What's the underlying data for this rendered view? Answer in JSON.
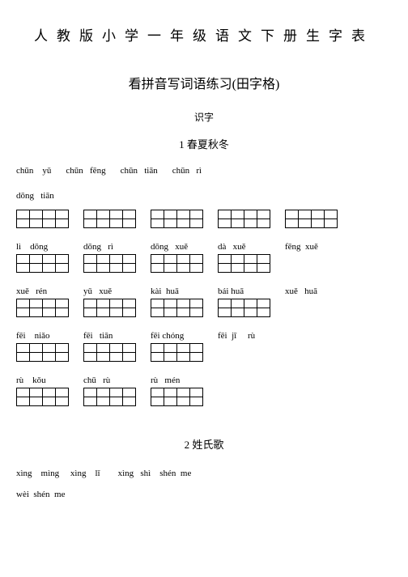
{
  "mainTitle": "人教版小学一年级语文下册生字表",
  "subtitle": "看拼音写词语练习(田字格)",
  "sectionLabel": "识字",
  "lesson1": {
    "title": "1 春夏秋冬",
    "r1": [
      "chūn    yǔ",
      "chūn   fēng",
      "chūn   tiān",
      "chūn   rì"
    ],
    "r1b": "dōng   tiān",
    "r2": [
      "lì    dōng",
      "dōng   rì",
      "dōng   xuě",
      "dà   xuě",
      "fēng  xuě"
    ],
    "r3": [
      "xuě   rén",
      "yǔ   xuě",
      "kài  huā",
      "bái huā",
      "xuě   huā"
    ],
    "r4": [
      "fēi    niǎo",
      "fēi   tiān",
      "fēi chóng",
      "fēi  jī     rù"
    ],
    "r5": [
      "rù    kǒu",
      "chū   rù",
      "rù   mén"
    ]
  },
  "lesson2": {
    "title": "2 姓氏歌",
    "line1": "xìng    mìng     xìng    lǐ        xìng   shì    shén  me",
    "line2": "wèi  shén  me"
  },
  "gridCols": 4,
  "gridRows": 2
}
